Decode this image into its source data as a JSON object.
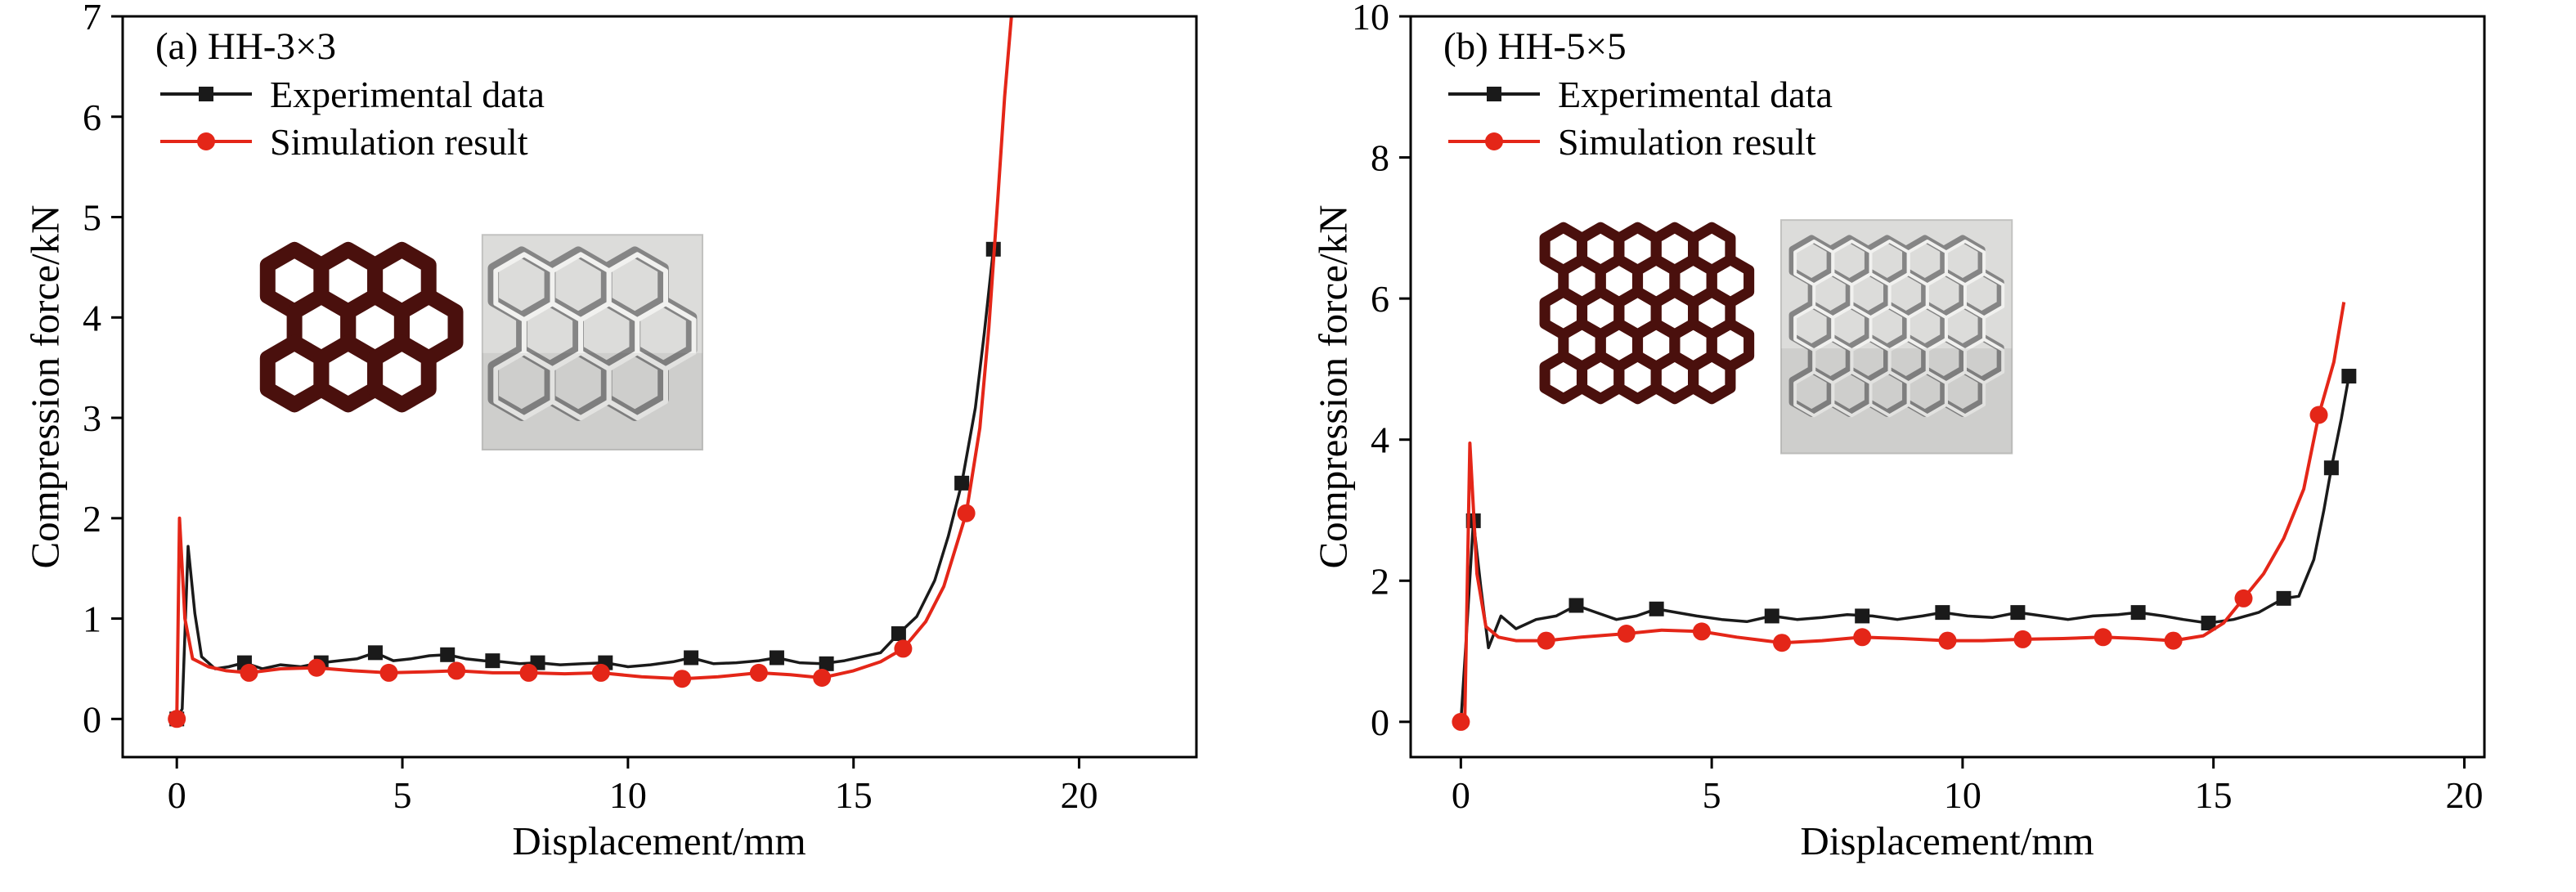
{
  "figure": {
    "background": "#ffffff",
    "text_color": "#000000"
  },
  "chart_data": [
    {
      "type": "line",
      "panel": "a",
      "title": "(a) HH-3×3",
      "xlabel": "Displacement/mm",
      "ylabel": "Compression force/kN",
      "xlim": [
        -1.2,
        22.6
      ],
      "ylim": [
        -0.38,
        7
      ],
      "xticks": [
        0,
        5,
        10,
        15,
        20
      ],
      "yticks": [
        0,
        1,
        2,
        3,
        4,
        5,
        6,
        7
      ],
      "grid": false,
      "legend_position": "top-left",
      "series": [
        {
          "name": "Experimental data",
          "color": "#1a1a1a",
          "marker": "square",
          "line": [
            [
              0,
              0
            ],
            [
              0.12,
              0.1
            ],
            [
              0.25,
              1.72
            ],
            [
              0.4,
              1.05
            ],
            [
              0.55,
              0.62
            ],
            [
              0.85,
              0.5
            ],
            [
              1.15,
              0.52
            ],
            [
              1.5,
              0.56
            ],
            [
              1.9,
              0.5
            ],
            [
              2.3,
              0.54
            ],
            [
              2.75,
              0.52
            ],
            [
              3.2,
              0.56
            ],
            [
              3.6,
              0.58
            ],
            [
              4.0,
              0.6
            ],
            [
              4.4,
              0.66
            ],
            [
              4.8,
              0.58
            ],
            [
              5.2,
              0.6
            ],
            [
              5.6,
              0.63
            ],
            [
              6.0,
              0.64
            ],
            [
              6.4,
              0.6
            ],
            [
              6.8,
              0.58
            ],
            [
              7.2,
              0.57
            ],
            [
              7.6,
              0.55
            ],
            [
              8.0,
              0.56
            ],
            [
              8.5,
              0.54
            ],
            [
              9.0,
              0.55
            ],
            [
              9.5,
              0.56
            ],
            [
              10.0,
              0.52
            ],
            [
              10.5,
              0.54
            ],
            [
              11.0,
              0.57
            ],
            [
              11.4,
              0.61
            ],
            [
              11.9,
              0.55
            ],
            [
              12.4,
              0.56
            ],
            [
              12.9,
              0.58
            ],
            [
              13.3,
              0.61
            ],
            [
              13.8,
              0.56
            ],
            [
              14.3,
              0.55
            ],
            [
              14.8,
              0.58
            ],
            [
              15.2,
              0.62
            ],
            [
              15.6,
              0.66
            ],
            [
              16.0,
              0.85
            ],
            [
              16.4,
              1.02
            ],
            [
              16.8,
              1.38
            ],
            [
              17.1,
              1.82
            ],
            [
              17.4,
              2.35
            ],
            [
              17.7,
              3.1
            ],
            [
              17.9,
              3.85
            ],
            [
              18.1,
              4.68
            ]
          ],
          "markers": [
            [
              0,
              0
            ],
            [
              1.5,
              0.56
            ],
            [
              3.2,
              0.56
            ],
            [
              4.4,
              0.66
            ],
            [
              6.0,
              0.64
            ],
            [
              7.0,
              0.58
            ],
            [
              8.0,
              0.56
            ],
            [
              9.5,
              0.56
            ],
            [
              11.4,
              0.61
            ],
            [
              13.3,
              0.61
            ],
            [
              14.4,
              0.55
            ],
            [
              16.0,
              0.85
            ],
            [
              17.4,
              2.35
            ],
            [
              18.1,
              4.68
            ]
          ]
        },
        {
          "name": "Simulation result",
          "color": "#e42618",
          "marker": "circle",
          "line": [
            [
              0,
              0
            ],
            [
              0.06,
              2.0
            ],
            [
              0.18,
              1.0
            ],
            [
              0.35,
              0.6
            ],
            [
              0.7,
              0.52
            ],
            [
              1.1,
              0.48
            ],
            [
              1.6,
              0.46
            ],
            [
              2.3,
              0.5
            ],
            [
              3.1,
              0.51
            ],
            [
              3.9,
              0.48
            ],
            [
              4.7,
              0.46
            ],
            [
              5.5,
              0.47
            ],
            [
              6.2,
              0.48
            ],
            [
              7.0,
              0.46
            ],
            [
              7.8,
              0.46
            ],
            [
              8.6,
              0.45
            ],
            [
              9.4,
              0.46
            ],
            [
              10.3,
              0.42
            ],
            [
              11.2,
              0.4
            ],
            [
              12.0,
              0.42
            ],
            [
              12.9,
              0.46
            ],
            [
              13.6,
              0.44
            ],
            [
              14.3,
              0.41
            ],
            [
              15.0,
              0.48
            ],
            [
              15.6,
              0.57
            ],
            [
              16.1,
              0.7
            ],
            [
              16.6,
              0.97
            ],
            [
              17.0,
              1.32
            ],
            [
              17.5,
              2.05
            ],
            [
              17.8,
              2.9
            ],
            [
              18.0,
              3.9
            ],
            [
              18.2,
              5.2
            ],
            [
              18.35,
              6.2
            ],
            [
              18.5,
              7.0
            ]
          ],
          "markers": [
            [
              0,
              0
            ],
            [
              1.6,
              0.46
            ],
            [
              3.1,
              0.51
            ],
            [
              4.7,
              0.46
            ],
            [
              6.2,
              0.48
            ],
            [
              7.8,
              0.46
            ],
            [
              9.4,
              0.46
            ],
            [
              11.2,
              0.4
            ],
            [
              12.9,
              0.46
            ],
            [
              14.3,
              0.41
            ],
            [
              16.1,
              0.7
            ],
            [
              17.5,
              2.05
            ]
          ]
        }
      ],
      "insets": [
        {
          "kind": "lattice",
          "rows": 3,
          "cols": 3,
          "color": "#4a100d",
          "fx": 0.135,
          "fy": 0.315,
          "fw": 0.175,
          "fh": 0.265
        },
        {
          "kind": "photo",
          "rows": 3,
          "cols": 3,
          "fx": 0.335,
          "fy": 0.295,
          "fw": 0.205,
          "fh": 0.29
        }
      ]
    },
    {
      "type": "line",
      "panel": "b",
      "title": "(b) HH-5×5",
      "xlabel": "Displacement/mm",
      "ylabel": "Compression force/kN",
      "xlim": [
        -1.0,
        20.4
      ],
      "ylim": [
        -0.5,
        10
      ],
      "xticks": [
        0,
        5,
        10,
        15,
        20
      ],
      "yticks": [
        0,
        2,
        4,
        6,
        8,
        10
      ],
      "grid": false,
      "legend_position": "top-left",
      "series": [
        {
          "name": "Experimental data",
          "color": "#1a1a1a",
          "marker": "square",
          "line": [
            [
              0,
              0
            ],
            [
              0.1,
              1.1
            ],
            [
              0.25,
              2.85
            ],
            [
              0.4,
              1.9
            ],
            [
              0.55,
              1.05
            ],
            [
              0.8,
              1.5
            ],
            [
              1.1,
              1.32
            ],
            [
              1.5,
              1.45
            ],
            [
              1.9,
              1.5
            ],
            [
              2.3,
              1.65
            ],
            [
              2.7,
              1.55
            ],
            [
              3.1,
              1.45
            ],
            [
              3.5,
              1.5
            ],
            [
              3.9,
              1.6
            ],
            [
              4.3,
              1.55
            ],
            [
              4.7,
              1.5
            ],
            [
              5.2,
              1.45
            ],
            [
              5.7,
              1.42
            ],
            [
              6.2,
              1.5
            ],
            [
              6.7,
              1.45
            ],
            [
              7.2,
              1.48
            ],
            [
              7.7,
              1.52
            ],
            [
              8.2,
              1.5
            ],
            [
              8.7,
              1.45
            ],
            [
              9.2,
              1.5
            ],
            [
              9.6,
              1.55
            ],
            [
              10.1,
              1.5
            ],
            [
              10.6,
              1.48
            ],
            [
              11.1,
              1.55
            ],
            [
              11.6,
              1.5
            ],
            [
              12.1,
              1.45
            ],
            [
              12.6,
              1.5
            ],
            [
              13.1,
              1.52
            ],
            [
              13.5,
              1.55
            ],
            [
              14.0,
              1.5
            ],
            [
              14.4,
              1.45
            ],
            [
              14.9,
              1.4
            ],
            [
              15.4,
              1.45
            ],
            [
              15.9,
              1.55
            ],
            [
              16.4,
              1.75
            ],
            [
              16.7,
              1.78
            ],
            [
              17.0,
              2.3
            ],
            [
              17.2,
              3.0
            ],
            [
              17.35,
              3.6
            ],
            [
              17.55,
              4.3
            ],
            [
              17.7,
              4.9
            ]
          ],
          "markers": [
            [
              0.25,
              2.85
            ],
            [
              2.3,
              1.65
            ],
            [
              3.9,
              1.6
            ],
            [
              6.2,
              1.5
            ],
            [
              8.0,
              1.5
            ],
            [
              9.6,
              1.55
            ],
            [
              11.1,
              1.55
            ],
            [
              13.5,
              1.55
            ],
            [
              14.9,
              1.4
            ],
            [
              16.4,
              1.75
            ],
            [
              17.35,
              3.6
            ],
            [
              17.7,
              4.9
            ]
          ]
        },
        {
          "name": "Simulation result",
          "color": "#e42618",
          "marker": "circle",
          "line": [
            [
              0,
              0
            ],
            [
              0.08,
              0.1
            ],
            [
              0.18,
              3.95
            ],
            [
              0.32,
              2.1
            ],
            [
              0.5,
              1.35
            ],
            [
              0.75,
              1.2
            ],
            [
              1.1,
              1.15
            ],
            [
              1.7,
              1.15
            ],
            [
              2.4,
              1.2
            ],
            [
              3.3,
              1.25
            ],
            [
              4.0,
              1.3
            ],
            [
              4.8,
              1.28
            ],
            [
              5.5,
              1.2
            ],
            [
              6.4,
              1.12
            ],
            [
              7.2,
              1.15
            ],
            [
              8.0,
              1.2
            ],
            [
              8.8,
              1.18
            ],
            [
              9.7,
              1.15
            ],
            [
              10.4,
              1.15
            ],
            [
              11.2,
              1.17
            ],
            [
              12.0,
              1.18
            ],
            [
              12.8,
              1.2
            ],
            [
              13.5,
              1.18
            ],
            [
              14.2,
              1.15
            ],
            [
              14.8,
              1.22
            ],
            [
              15.2,
              1.4
            ],
            [
              15.6,
              1.75
            ],
            [
              16.0,
              2.1
            ],
            [
              16.4,
              2.6
            ],
            [
              16.8,
              3.3
            ],
            [
              17.1,
              4.35
            ],
            [
              17.4,
              5.1
            ],
            [
              17.6,
              5.95
            ]
          ],
          "markers": [
            [
              0,
              0
            ],
            [
              1.7,
              1.15
            ],
            [
              3.3,
              1.25
            ],
            [
              4.8,
              1.28
            ],
            [
              6.4,
              1.12
            ],
            [
              8.0,
              1.2
            ],
            [
              9.7,
              1.15
            ],
            [
              11.2,
              1.17
            ],
            [
              12.8,
              1.2
            ],
            [
              14.2,
              1.15
            ],
            [
              15.6,
              1.75
            ],
            [
              17.1,
              4.35
            ]
          ]
        }
      ],
      "insets": [
        {
          "kind": "lattice",
          "rows": 5,
          "cols": 5,
          "color": "#4a100d",
          "fx": 0.125,
          "fy": 0.285,
          "fw": 0.19,
          "fh": 0.315
        },
        {
          "kind": "photo",
          "rows": 5,
          "cols": 5,
          "fx": 0.345,
          "fy": 0.275,
          "fw": 0.215,
          "fh": 0.315
        }
      ]
    }
  ]
}
